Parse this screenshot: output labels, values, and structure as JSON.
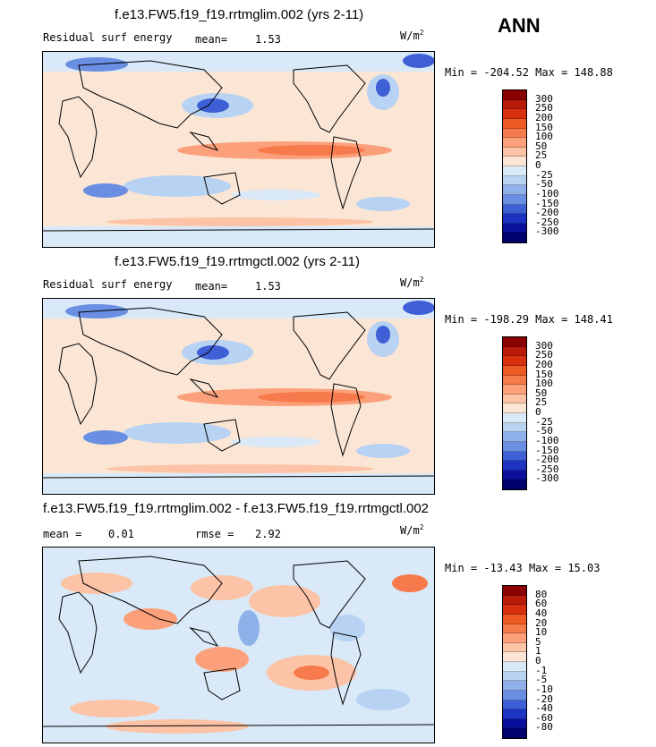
{
  "season": "ANN",
  "panels": [
    {
      "title": "f.e13.FW5.f19_f19.rrtmglim.002 (yrs 2-11)",
      "variable": "Residual surf energy",
      "stat1_label": "mean=",
      "stat1_value": "1.53",
      "units": "W/m",
      "units_sup": "2",
      "min_label": "Min =",
      "min_value": "-204.52",
      "max_label": "Max =",
      "max_value": "148.88",
      "levels": [
        "300",
        "250",
        "200",
        "150",
        "100",
        "50",
        "25",
        "0",
        "-25",
        "-50",
        "-100",
        "-150",
        "-200",
        "-250",
        "-300"
      ]
    },
    {
      "title": "f.e13.FW5.f19_f19.rrtmgctl.002 (yrs 2-11)",
      "variable": "Residual surf energy",
      "stat1_label": "mean=",
      "stat1_value": "1.53",
      "units": "W/m",
      "units_sup": "2",
      "min_label": "Min =",
      "min_value": "-198.29",
      "max_label": "Max =",
      "max_value": "148.41",
      "levels": [
        "300",
        "250",
        "200",
        "150",
        "100",
        "50",
        "25",
        "0",
        "-25",
        "-50",
        "-100",
        "-150",
        "-200",
        "-250",
        "-300"
      ]
    },
    {
      "title": "f.e13.FW5.f19_f19.rrtmglim.002 - f.e13.FW5.f19_f19.rrtmgctl.002",
      "stat1_label": "mean =",
      "stat1_value": "0.01",
      "stat2_label": "rmse =",
      "stat2_value": "2.92",
      "units": "W/m",
      "units_sup": "2",
      "min_label": "Min =",
      "min_value": "-13.43",
      "max_label": "Max =",
      "max_value": "15.03",
      "levels": [
        "80",
        "60",
        "40",
        "20",
        "10",
        "5",
        "1",
        "0",
        "-1",
        "-5",
        "-10",
        "-20",
        "-40",
        "-60",
        "-80"
      ]
    }
  ],
  "colors": {
    "scale": [
      "#8b0000",
      "#b81b08",
      "#d8300e",
      "#ee5a24",
      "#f77a4c",
      "#fba07a",
      "#fcc3a6",
      "#fbe6d6",
      "#d9e9f7",
      "#b7d2f2",
      "#8fb1ea",
      "#6a8ee2",
      "#3f5fd6",
      "#1d33c2",
      "#0a109c",
      "#000070"
    ],
    "ocean_base": "#fbe6d6",
    "land": "#fbe6d6"
  }
}
